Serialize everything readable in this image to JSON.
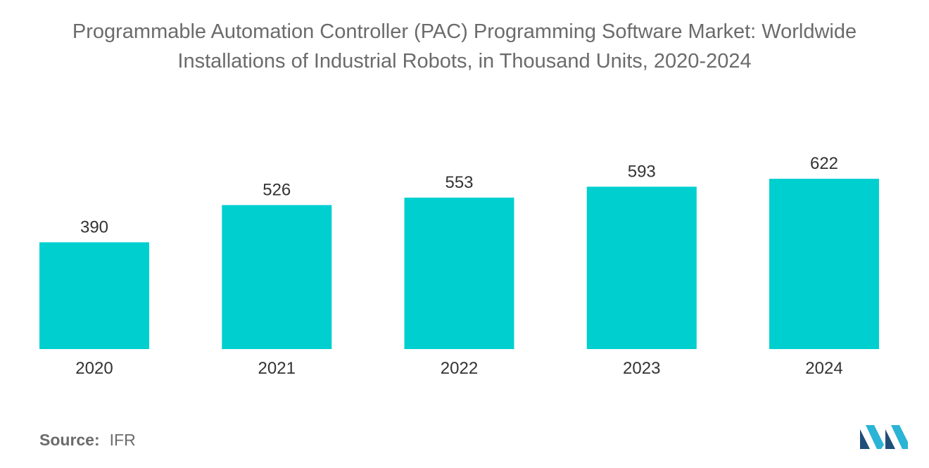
{
  "chart_data": {
    "type": "bar",
    "title_lines": [
      "Programmable Automation Controller (PAC) Programming Software Market: Worldwide",
      "Installations of Industrial Robots, in Thousand Units, 2020-2024"
    ],
    "categories": [
      "2020",
      "2021",
      "2022",
      "2023",
      "2024"
    ],
    "values": [
      390,
      526,
      553,
      593,
      622
    ],
    "data_labels": [
      "390",
      "526",
      "553",
      "593",
      "622"
    ],
    "xlabel": "",
    "ylabel": "",
    "ylim": [
      0,
      622
    ],
    "grid": false,
    "legend": "none",
    "bar_color": "#00cfcf"
  },
  "source": {
    "label": "Source:",
    "value": "IFR"
  },
  "logo": {
    "name": "mordor-intelligence-logo",
    "colors": [
      "#1f4e7a",
      "#2ab4d6"
    ]
  }
}
